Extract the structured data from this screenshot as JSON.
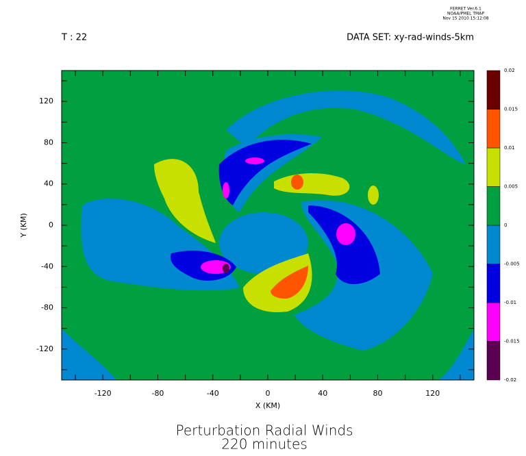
{
  "chart_data": {
    "type": "contour",
    "stamp": [
      "FERRET Ver.6.1",
      "NOAA/PMEL TMAP",
      "Nov 15 2010 15:12:08"
    ],
    "time_label": "T : 22",
    "dataset_label": "DATA SET: xy-rad-winds-5km",
    "title": "Perturbation Radial Winds",
    "subtitle": "220 minutes",
    "xlabel": "X (KM)",
    "ylabel": "Y (KM)",
    "xlim": [
      -150,
      150
    ],
    "ylim": [
      -150,
      150
    ],
    "xticks": [
      -120,
      -80,
      -40,
      0,
      40,
      80,
      120
    ],
    "yticks": [
      -120,
      -80,
      -40,
      0,
      40,
      80,
      120
    ],
    "xminorticks": [
      -140,
      -100,
      -60,
      -20,
      20,
      60,
      100,
      140
    ],
    "yminorticks": [
      -140,
      -100,
      -60,
      -20,
      20,
      60,
      100,
      140
    ],
    "colorbar": {
      "levels": [
        -0.02,
        -0.015,
        -0.01,
        -0.005,
        0,
        0.005,
        0.01,
        0.015,
        0.02
      ],
      "colors": [
        "#5a0050",
        "#ff00ff",
        "#0000e0",
        "#0088d0",
        "#00a040",
        "#c8e000",
        "#ff5500",
        "#6b0000"
      ]
    },
    "background_level": 4
  }
}
